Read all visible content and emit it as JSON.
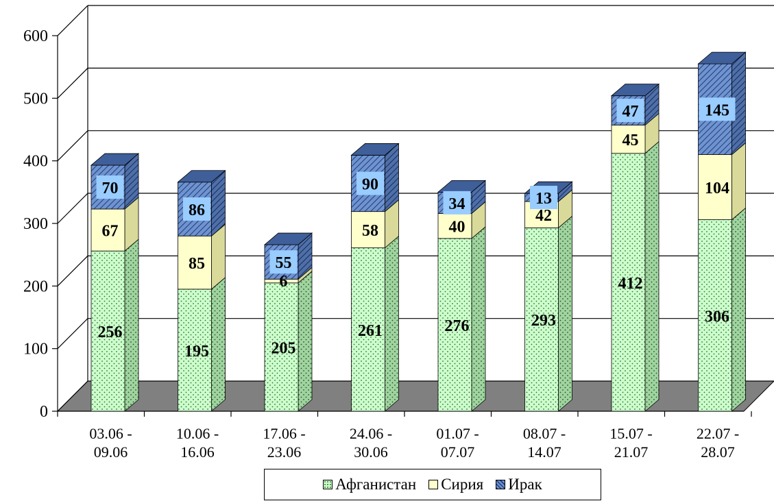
{
  "chart_data": {
    "type": "bar",
    "stacked": true,
    "three_d": true,
    "title": "",
    "xlabel": "",
    "ylabel": "",
    "ylim": [
      0,
      600
    ],
    "yticks": [
      "0",
      "100",
      "200",
      "300",
      "400",
      "500",
      "600"
    ],
    "grid": true,
    "legend_position": "bottom",
    "categories": [
      [
        "03.06 -",
        "09.06"
      ],
      [
        "10.06 -",
        "16.06"
      ],
      [
        "17.06 -",
        "23.06"
      ],
      [
        "24.06 -",
        "30.06"
      ],
      [
        "01.07 -",
        "07.07"
      ],
      [
        "08.07 -",
        "14.07"
      ],
      [
        "15.07 -",
        "21.07"
      ],
      [
        "22.07 -",
        "28.07"
      ]
    ],
    "series": [
      {
        "name": "Афганистан",
        "color": "#CCFFCC",
        "values": [
          256,
          195,
          205,
          261,
          276,
          293,
          412,
          306
        ]
      },
      {
        "name": "Сирия",
        "color": "#FFFFCC",
        "values": [
          67,
          85,
          6,
          58,
          40,
          42,
          45,
          104
        ]
      },
      {
        "name": "Ирак",
        "color": "#99CCFF",
        "values": [
          70,
          86,
          55,
          90,
          34,
          13,
          47,
          145
        ]
      }
    ]
  }
}
